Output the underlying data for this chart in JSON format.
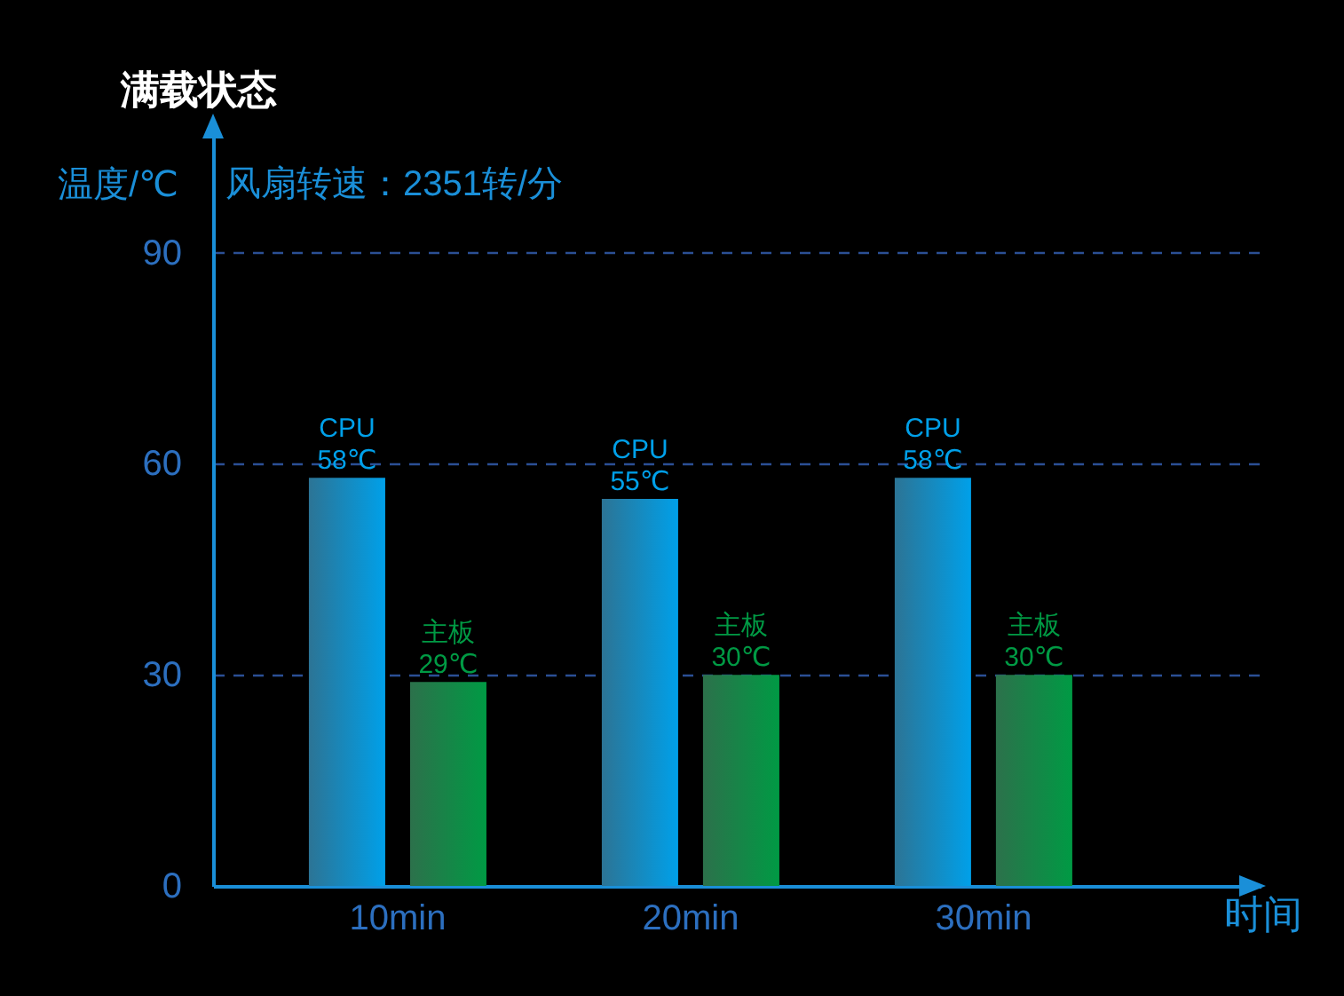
{
  "chart_data": {
    "type": "bar",
    "title": "满载状态",
    "subtitle": "风扇转速：2351转/分",
    "ylabel": "温度/℃",
    "xlabel": "时间",
    "categories": [
      "10min",
      "20min",
      "30min"
    ],
    "series": [
      {
        "name": "CPU",
        "color": "#00a0e9",
        "values": [
          58,
          55,
          58
        ],
        "value_labels": [
          "58℃",
          "55℃",
          "58℃"
        ]
      },
      {
        "name": "主板",
        "color": "#009a44",
        "values": [
          29,
          30,
          30
        ],
        "value_labels": [
          "29℃",
          "30℃",
          "30℃"
        ]
      }
    ],
    "ylim": [
      0,
      108
    ],
    "yticks": [
      0,
      30,
      60,
      90
    ],
    "grid": "y"
  }
}
